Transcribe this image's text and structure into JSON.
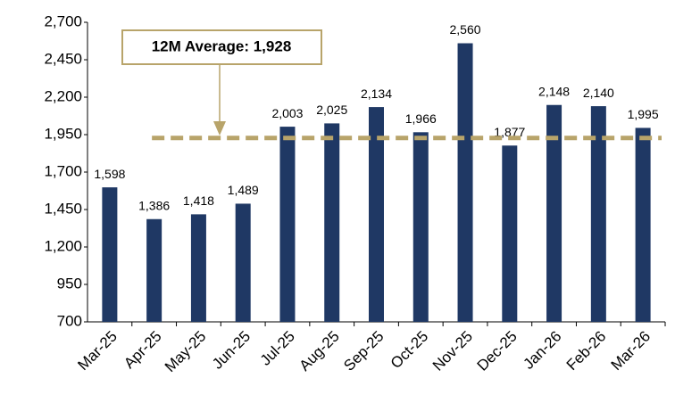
{
  "chart_data": {
    "type": "bar",
    "categories": [
      "Mar-25",
      "Apr-25",
      "May-25",
      "Jun-25",
      "Jul-25",
      "Aug-25",
      "Sep-25",
      "Oct-25",
      "Nov-25",
      "Dec-25",
      "Jan-26",
      "Feb-26",
      "Mar-26"
    ],
    "values": [
      1598,
      1386,
      1418,
      1489,
      2003,
      2025,
      2134,
      1966,
      2560,
      1877,
      2148,
      2140,
      1995
    ],
    "value_labels": [
      "1,598",
      "1,386",
      "1,418",
      "1,489",
      "2,003",
      "2,025",
      "2,134",
      "1,966",
      "2,560",
      "1,877",
      "2,148",
      "2,140",
      "1,995"
    ],
    "color": "#1f3864",
    "ylim": [
      700,
      2700
    ],
    "yticks": [
      700,
      950,
      {
        "value": 1200,
        "label": "1,200"
      },
      {
        "value": 1450,
        "label": "1,450"
      },
      {
        "value": 1700,
        "label": "1,700"
      },
      {
        "value": 1950,
        "label": "1,950"
      },
      {
        "value": 2200,
        "label": "2,200"
      },
      {
        "value": 2450,
        "label": "2,450"
      },
      {
        "value": 2700,
        "label": "2,700"
      }
    ],
    "grid": false,
    "average": {
      "label": "12M Average: 1,928",
      "value": 1928,
      "color": "#b8a46a"
    }
  }
}
